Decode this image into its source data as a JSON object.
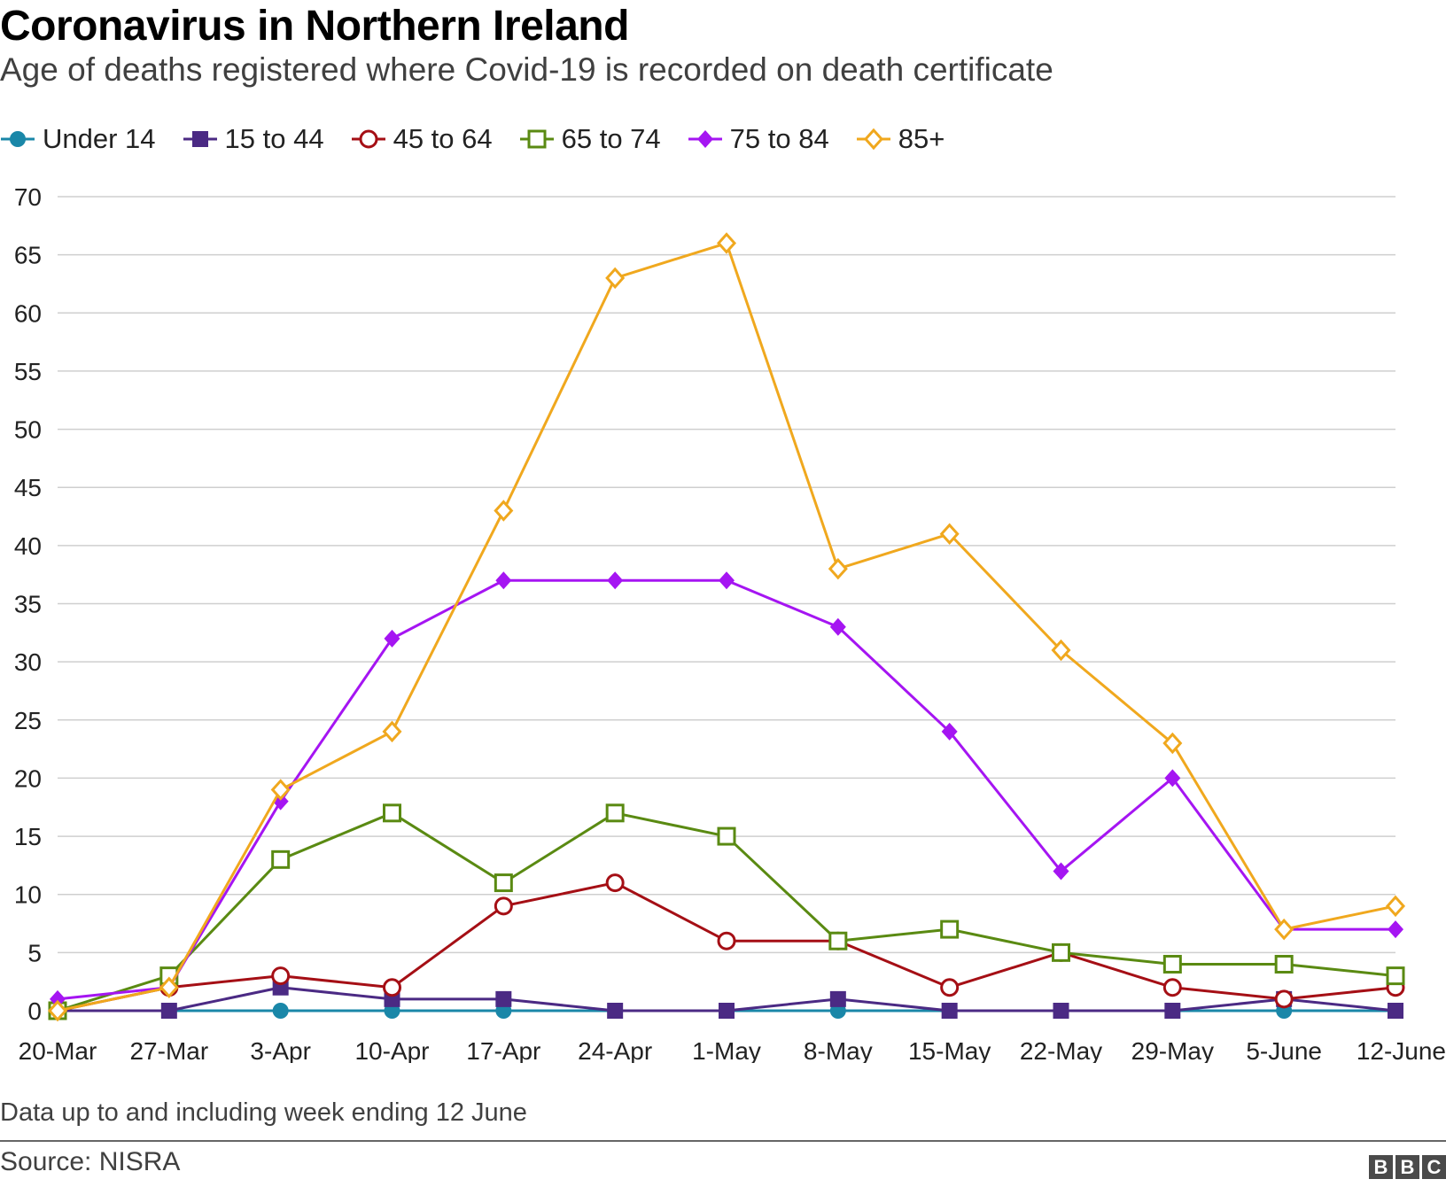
{
  "title": "Coronavirus in Northern Ireland",
  "subtitle": "Age of deaths registered where Covid-19 is recorded on death certificate",
  "note": "Data up to and including week ending 12 June",
  "source": "Source: NISRA",
  "brand": [
    "B",
    "B",
    "C"
  ],
  "chart_data": {
    "type": "line",
    "x": [
      "20-Mar",
      "27-Mar",
      "3-Apr",
      "10-Apr",
      "17-Apr",
      "24-Apr",
      "1-May",
      "8-May",
      "15-May",
      "22-May",
      "29-May",
      "5-June",
      "12-June"
    ],
    "ylim": [
      0,
      70
    ],
    "yticks": [
      0,
      5,
      10,
      15,
      20,
      25,
      30,
      35,
      40,
      45,
      50,
      55,
      60,
      65,
      70
    ],
    "grid": true,
    "legend_position": "top-left",
    "series": [
      {
        "name": "Under 14",
        "color": "#1a87a8",
        "marker": "circle-filled",
        "values": [
          0,
          0,
          0,
          0,
          0,
          0,
          0,
          0,
          0,
          0,
          0,
          0,
          0
        ]
      },
      {
        "name": "15 to 44",
        "color": "#4b2a84",
        "marker": "square-filled",
        "values": [
          0,
          0,
          2,
          1,
          1,
          0,
          0,
          1,
          0,
          0,
          0,
          1,
          0
        ]
      },
      {
        "name": "45 to 64",
        "color": "#a50f15",
        "marker": "circle-open",
        "values": [
          0,
          2,
          3,
          2,
          9,
          11,
          6,
          6,
          2,
          5,
          2,
          1,
          2
        ]
      },
      {
        "name": "65 to 74",
        "color": "#5a8a12",
        "marker": "square-open",
        "values": [
          0,
          3,
          13,
          17,
          11,
          17,
          15,
          6,
          7,
          5,
          4,
          4,
          3
        ]
      },
      {
        "name": "75 to 84",
        "color": "#a515f2",
        "marker": "diamond-filled",
        "values": [
          1,
          2,
          18,
          32,
          37,
          37,
          37,
          33,
          24,
          12,
          20,
          7,
          7
        ]
      },
      {
        "name": "85+",
        "color": "#f0a81e",
        "marker": "diamond-open",
        "values": [
          0,
          2,
          19,
          24,
          43,
          63,
          66,
          38,
          41,
          31,
          23,
          7,
          9
        ]
      }
    ]
  }
}
